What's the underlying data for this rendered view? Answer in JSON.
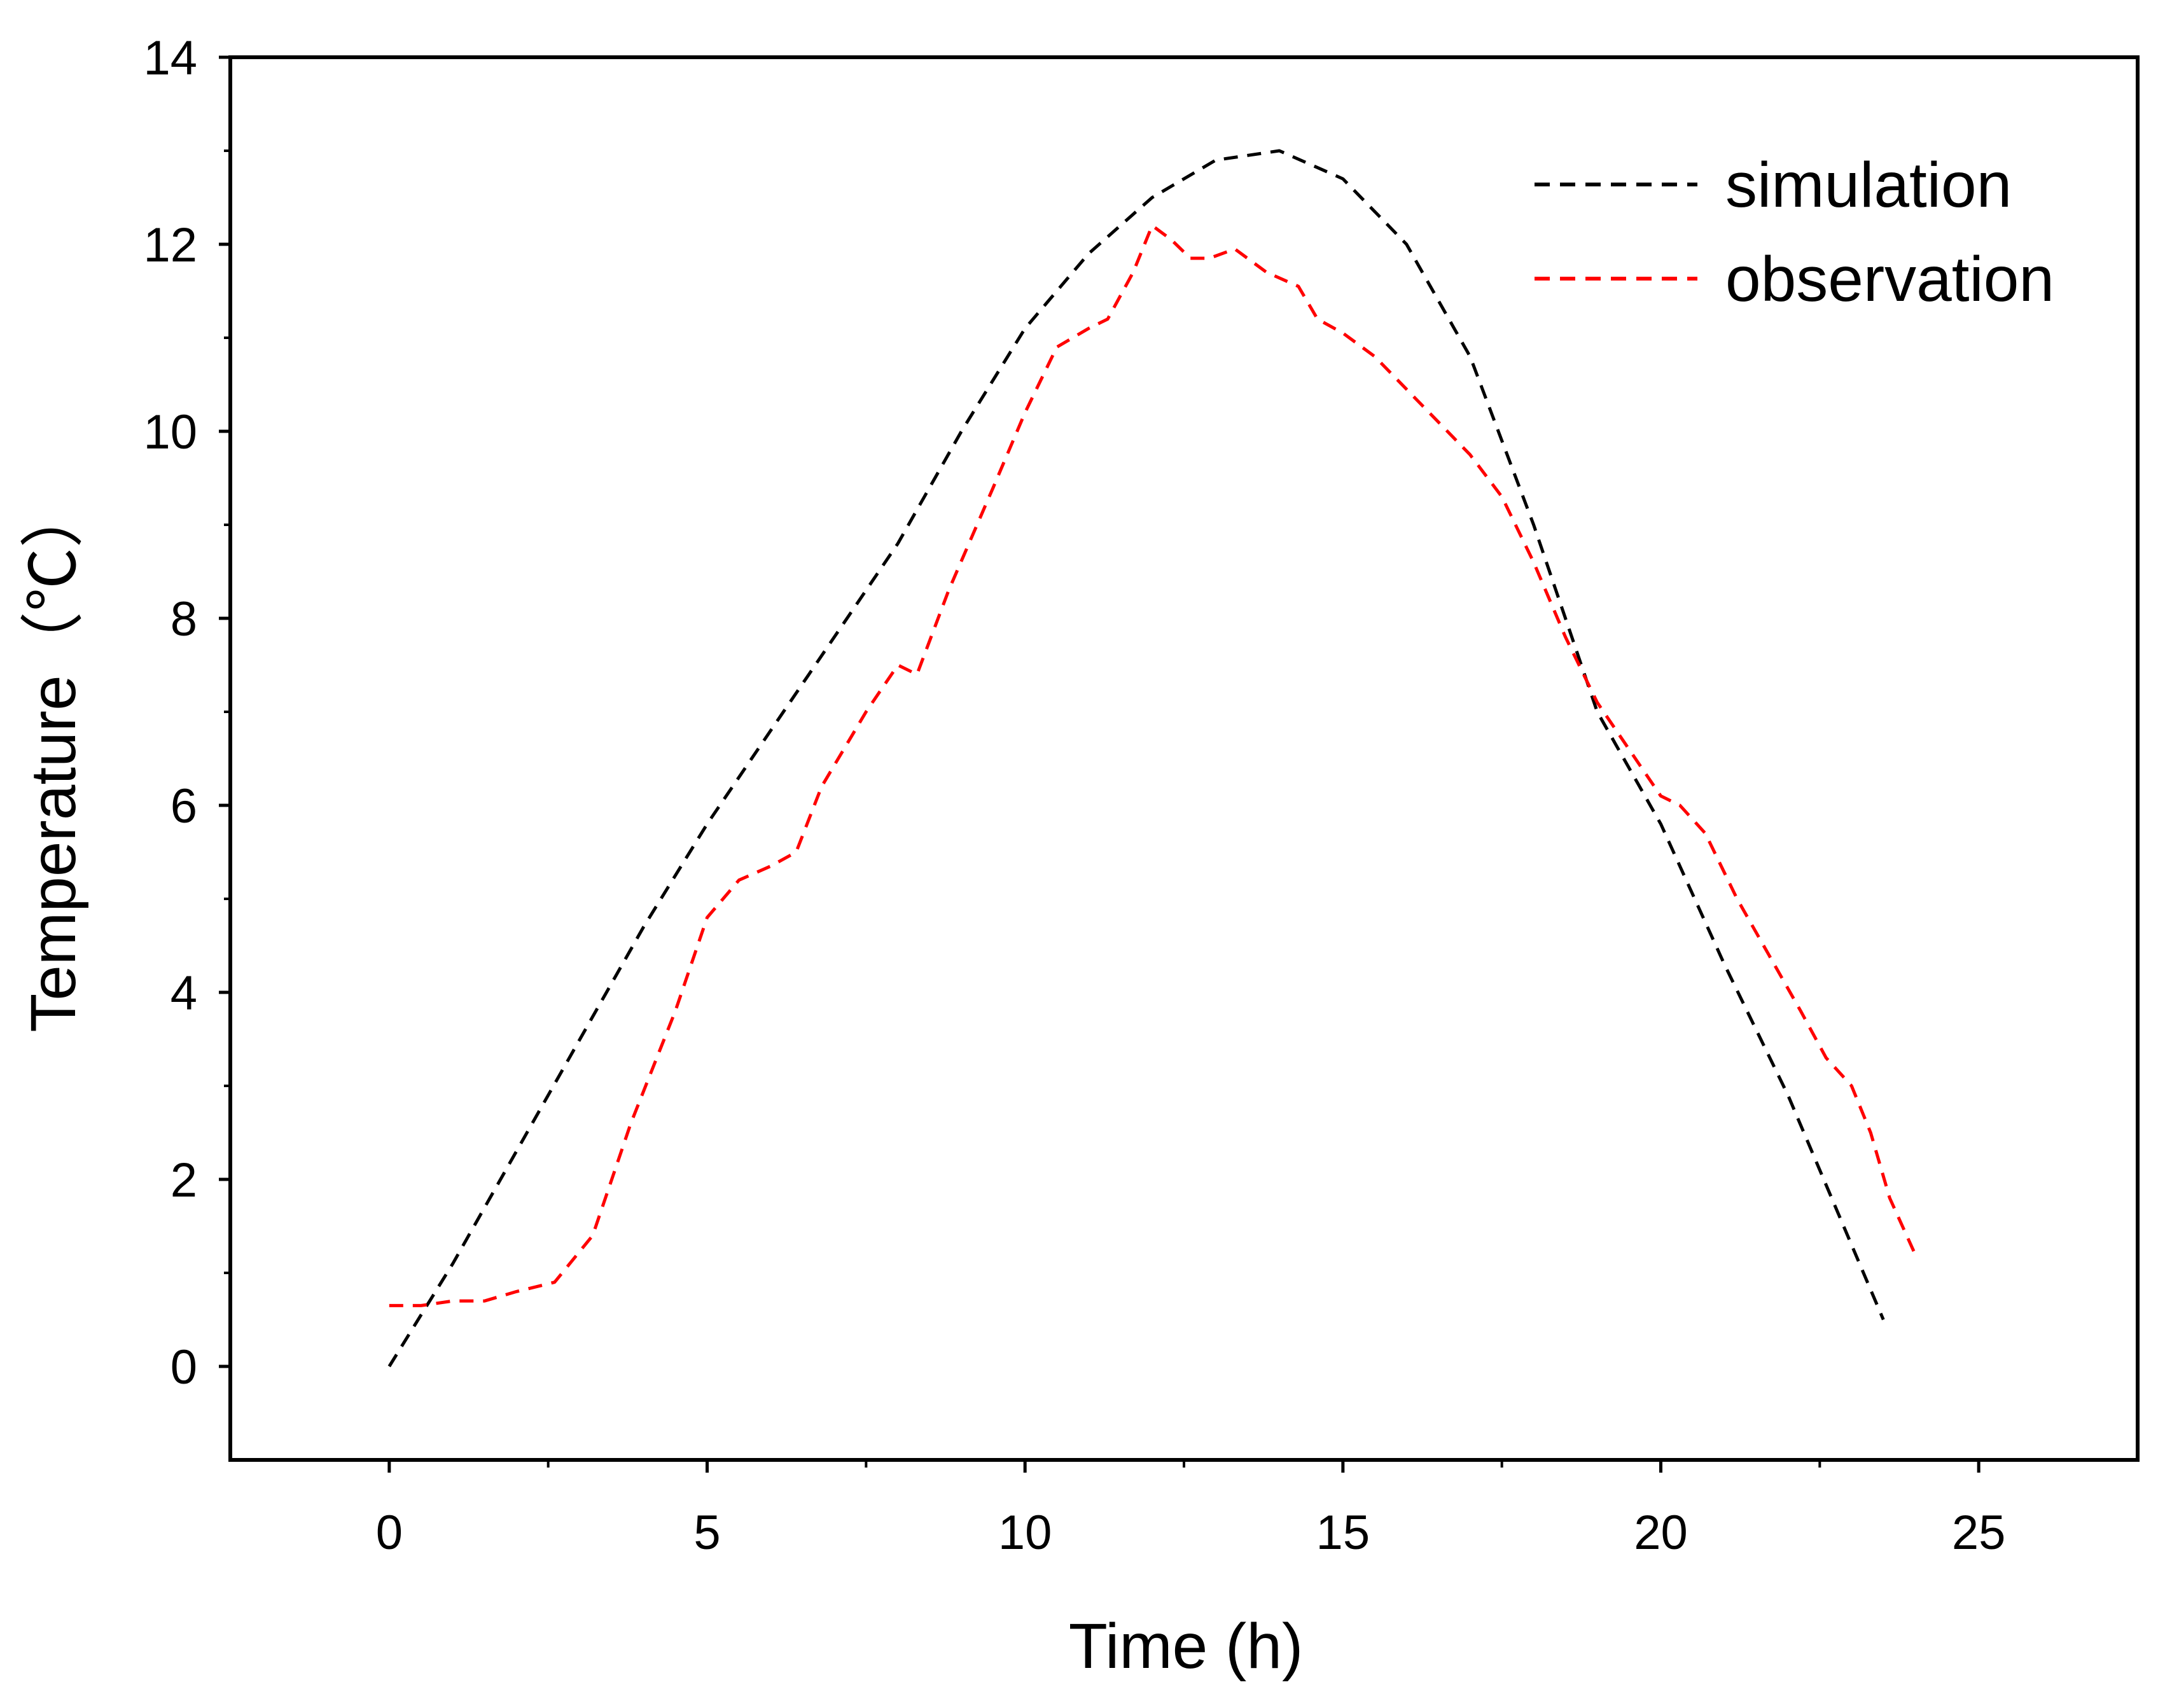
{
  "chart_data": {
    "type": "line",
    "title": "",
    "xlabel": "Time (h)",
    "ylabel": "Temperature（℃）",
    "xlim": [
      -2.5,
      27.5
    ],
    "ylim": [
      -1,
      14
    ],
    "xticks": [
      0,
      5,
      10,
      15,
      20,
      25
    ],
    "yticks": [
      0,
      2,
      4,
      6,
      8,
      10,
      12,
      14
    ],
    "grid": false,
    "legend_position": "top-right",
    "series": [
      {
        "name": "simulation",
        "color": "#000000",
        "style": "dashed",
        "x": [
          0,
          1,
          2,
          3,
          4,
          5,
          6,
          7,
          8,
          9,
          10,
          11,
          12,
          13,
          14,
          15,
          16,
          17,
          18,
          19,
          20,
          21,
          22,
          23,
          23.5
        ],
        "y": [
          0,
          1.1,
          2.3,
          3.5,
          4.7,
          5.8,
          6.8,
          7.8,
          8.8,
          10.0,
          11.1,
          11.9,
          12.5,
          12.9,
          13.0,
          12.7,
          12.0,
          10.8,
          9.0,
          7.0,
          5.8,
          4.3,
          2.9,
          1.3,
          0.5
        ]
      },
      {
        "name": "observation",
        "color": "#ff0000",
        "style": "dashed",
        "x": [
          0,
          0.5,
          1,
          1.5,
          2,
          2.6,
          3.2,
          3.8,
          4.5,
          5.0,
          5.5,
          6.0,
          6.4,
          6.8,
          7.5,
          8.0,
          8.3,
          8.8,
          9.5,
          10.0,
          10.5,
          11.0,
          11.3,
          11.7,
          12.0,
          12.3,
          12.6,
          12.9,
          13.3,
          13.8,
          14.3,
          14.6,
          15.0,
          15.5,
          16.0,
          16.5,
          17.0,
          17.5,
          18.0,
          18.5,
          19.0,
          19.5,
          20.0,
          20.3,
          20.7,
          21.2,
          21.7,
          22.2,
          22.6,
          23.0,
          23.3,
          23.6,
          24.0
        ],
        "y": [
          0.65,
          0.65,
          0.7,
          0.7,
          0.8,
          0.9,
          1.4,
          2.6,
          3.8,
          4.8,
          5.2,
          5.35,
          5.5,
          6.2,
          7.0,
          7.5,
          7.4,
          8.3,
          9.4,
          10.2,
          10.9,
          11.1,
          11.2,
          11.7,
          12.2,
          12.05,
          11.85,
          11.85,
          11.95,
          11.7,
          11.55,
          11.2,
          11.05,
          10.8,
          10.45,
          10.1,
          9.75,
          9.3,
          8.6,
          7.8,
          7.1,
          6.6,
          6.1,
          6.0,
          5.7,
          5.0,
          4.4,
          3.8,
          3.3,
          3.0,
          2.5,
          1.8,
          1.2
        ]
      }
    ]
  }
}
